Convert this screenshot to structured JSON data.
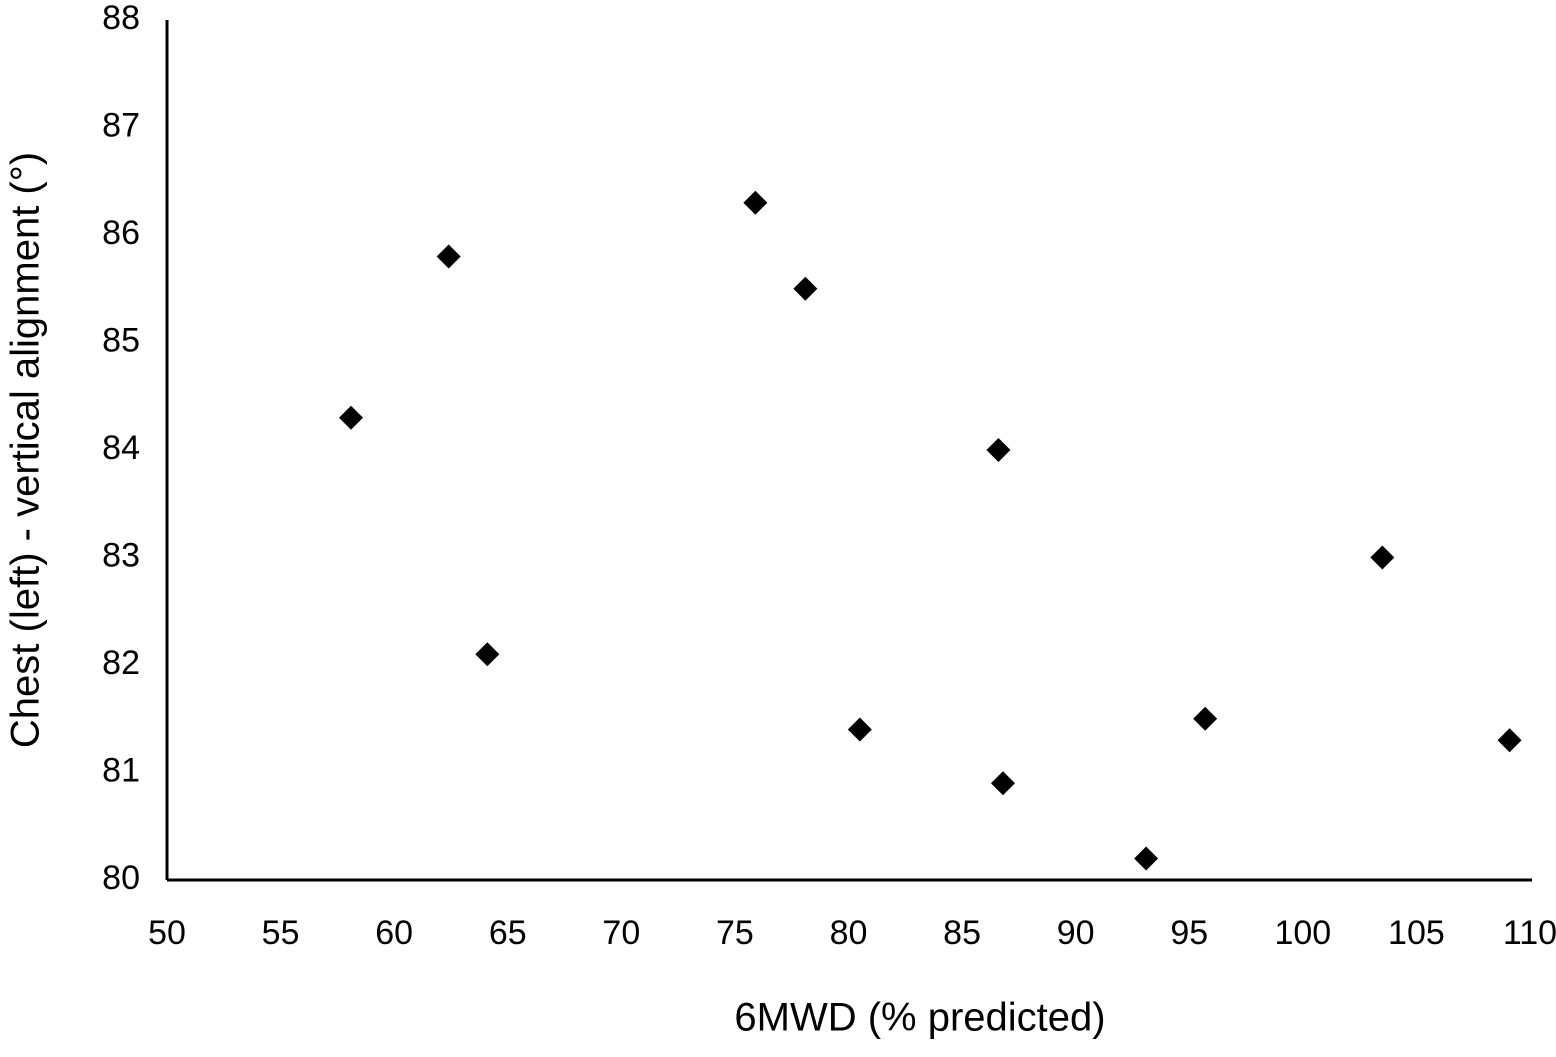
{
  "chart_data": {
    "type": "scatter",
    "x_label": "6MWD (% predicted)",
    "y_label": "Chest (left) - vertical alignment (°)",
    "x": [
      58.1,
      62.4,
      64.1,
      75.9,
      78.1,
      80.5,
      86.6,
      86.8,
      93.1,
      95.7,
      103.5,
      109.1
    ],
    "values": [
      84.3,
      85.8,
      82.1,
      86.3,
      85.5,
      81.4,
      84.0,
      80.9,
      80.2,
      81.5,
      83.0,
      81.3
    ],
    "color": "#000000",
    "marker": "diamond",
    "xlim": [
      50,
      110
    ],
    "xticks": [
      50,
      55,
      60,
      65,
      70,
      75,
      80,
      85,
      90,
      95,
      100,
      105,
      110
    ],
    "ylim": [
      80,
      88
    ],
    "yticks": [
      80,
      81,
      82,
      83,
      84,
      85,
      86,
      87,
      88
    ],
    "grid": false
  }
}
